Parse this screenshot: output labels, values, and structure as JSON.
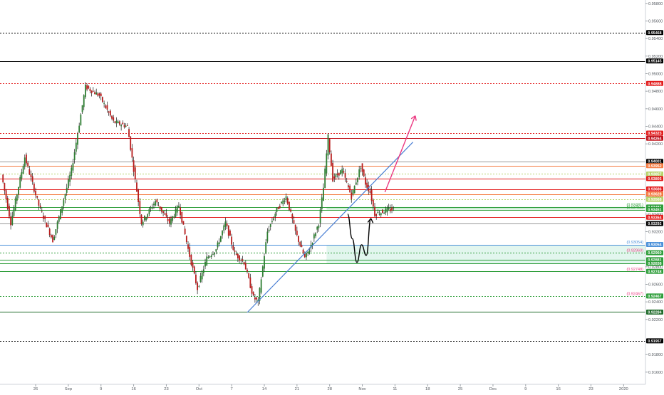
{
  "chart_data": {
    "type": "candlestick",
    "title": "",
    "xlabel": "",
    "ylabel": "",
    "ylim": [
      0.91461,
      0.95839
    ],
    "grid": false,
    "y_ticks": [
      "0.95800",
      "0.95600",
      "0.95400",
      "0.95200",
      "0.95000",
      "0.94800",
      "0.94600",
      "0.94400",
      "0.94200",
      "0.93800",
      "0.93600",
      "0.93400",
      "0.93200",
      "0.92800",
      "0.92600",
      "0.92400",
      "0.92200",
      "0.91800",
      "0.91600",
      "0.91400"
    ],
    "x_ticks": [
      "26",
      "Sep",
      "9",
      "16",
      "23",
      "Oct",
      "7",
      "14",
      "21",
      "28",
      "Nov",
      "11",
      "18",
      "25",
      "Dec",
      "9",
      "16",
      "23",
      "2020"
    ],
    "x_tick_slots": [
      7,
      14,
      21,
      28,
      35,
      42,
      49,
      56,
      63,
      70,
      77,
      84,
      91,
      98,
      105,
      112,
      119,
      126,
      133
    ],
    "candle_count": 84,
    "price_badges": [
      {
        "label": "0.95468",
        "value": 0.95468,
        "color": "#000000"
      },
      {
        "label": "0.95145",
        "value": 0.95145,
        "color": "#000000"
      },
      {
        "label": "0.94888",
        "value": 0.94888,
        "color": "#e31c1c"
      },
      {
        "label": "0.94323",
        "value": 0.94323,
        "color": "#e31c1c"
      },
      {
        "label": "0.94264",
        "value": 0.94264,
        "color": "#c0101a"
      },
      {
        "label": "0.94001",
        "value": 0.94001,
        "color": "#000000"
      },
      {
        "label": "0.93952",
        "value": 0.93952,
        "color": "#f57a40"
      },
      {
        "label": "0.93857",
        "value": 0.93857,
        "color": "#b7d46b"
      },
      {
        "label": "0.93805",
        "value": 0.93805,
        "color": "#e31c1c"
      },
      {
        "label": "0.93686",
        "value": 0.93686,
        "color": "#e31c1c"
      },
      {
        "label": "0.93628",
        "value": 0.93628,
        "color": "#f57a40"
      },
      {
        "label": "0.93568",
        "value": 0.93568,
        "color": "#b7d46b"
      },
      {
        "label": "0.93481",
        "value": 0.93481,
        "color": "#2e9e3a"
      },
      {
        "label": "0.93451",
        "value": 0.93451,
        "color": "#2e9e3a"
      },
      {
        "label": "0.93364",
        "value": 0.93364,
        "color": "#e31c1c"
      },
      {
        "label": "0.93292",
        "value": 0.93292,
        "color": "#000000"
      },
      {
        "label": "0.93054",
        "value": 0.93054,
        "color": "#4a90d9"
      },
      {
        "label": "0.92960",
        "value": 0.9296,
        "color": "#2e9e3a"
      },
      {
        "label": "0.92881",
        "value": 0.92881,
        "color": "#2e9e3a"
      },
      {
        "label": "0.92838",
        "value": 0.92838,
        "color": "#2e9e3a"
      },
      {
        "label": "0.92748",
        "value": 0.92748,
        "color": "#2e9e3a"
      },
      {
        "label": "0.92467",
        "value": 0.92467,
        "color": "#2e9e3a"
      },
      {
        "label": "0.92284",
        "value": 0.92284,
        "color": "#1f6b2a"
      },
      {
        "label": "0.91957",
        "value": 0.91957,
        "color": "#000000"
      }
    ],
    "horizontal_levels": [
      {
        "value": 0.95468,
        "color": "#000000",
        "style": "dotted"
      },
      {
        "value": 0.95145,
        "color": "#000000",
        "style": "solid"
      },
      {
        "value": 0.94888,
        "color": "#e31c1c",
        "style": "dotted"
      },
      {
        "value": 0.94323,
        "color": "#e31c1c",
        "style": "dotted"
      },
      {
        "value": 0.94264,
        "color": "#c0101a",
        "style": "solid"
      },
      {
        "value": 0.94001,
        "color": "#999999",
        "style": "solid"
      },
      {
        "value": 0.93952,
        "color": "#f57a40",
        "style": "solid"
      },
      {
        "value": 0.93857,
        "color": "#b7d46b",
        "style": "dotted"
      },
      {
        "value": 0.93805,
        "color": "#e31c1c",
        "style": "solid"
      },
      {
        "value": 0.93686,
        "color": "#e31c1c",
        "style": "solid"
      },
      {
        "value": 0.93628,
        "color": "#f57a40",
        "style": "solid"
      },
      {
        "value": 0.93568,
        "color": "#b7d46b",
        "style": "dotted"
      },
      {
        "value": 0.93481,
        "color": "#2e9e3a",
        "style": "solid"
      },
      {
        "value": 0.93451,
        "color": "#2e9e3a",
        "style": "solid"
      },
      {
        "value": 0.93364,
        "color": "#e31c1c",
        "style": "solid"
      },
      {
        "value": 0.93292,
        "color": "#999999",
        "style": "solid"
      },
      {
        "value": 0.93054,
        "color": "#4a90d9",
        "style": "solid"
      },
      {
        "value": 0.9296,
        "color": "#2e9e3a",
        "style": "dotted"
      },
      {
        "value": 0.92881,
        "color": "#2e9e3a",
        "style": "solid"
      },
      {
        "value": 0.92838,
        "color": "#2e9e3a",
        "style": "solid"
      },
      {
        "value": 0.92748,
        "color": "#2e9e3a",
        "style": "solid"
      },
      {
        "value": 0.92467,
        "color": "#2e9e3a",
        "style": "dotted"
      },
      {
        "value": 0.92284,
        "color": "#1f6b2a",
        "style": "solid"
      },
      {
        "value": 0.91957,
        "color": "#000000",
        "style": "dotted"
      }
    ],
    "zones": [
      {
        "from": 0.93451,
        "to": 0.93481,
        "color": "#c8ecd1"
      },
      {
        "from": 0.92838,
        "to": 0.9305,
        "color": "#dff5ec"
      }
    ],
    "trendline": {
      "color": "#4a7fd4",
      "from": {
        "slot": 52.5,
        "value": 0.9228
      },
      "to": {
        "slot": 88,
        "value": 0.9422
      }
    },
    "forecast_paths": [
      {
        "color": "#000000",
        "points": [
          [
            74,
            0.934
          ],
          [
            75,
            0.9312
          ],
          [
            76,
            0.9285
          ],
          [
            77,
            0.9305
          ],
          [
            78,
            0.9293
          ],
          [
            79,
            0.9335
          ]
        ]
      },
      {
        "color": "#ec3b83",
        "points": [
          [
            82,
            0.9365
          ],
          [
            88.5,
            0.9452
          ]
        ]
      }
    ],
    "small_level_labels": [
      {
        "text": "(0.93481)",
        "value": 0.93481,
        "color": "#2e9e3a"
      },
      {
        "text": "(0.93451)",
        "value": 0.93451,
        "color": "#2e9e3a"
      },
      {
        "text": "(0.93054)",
        "value": 0.93054,
        "color": "#4a90d9"
      },
      {
        "text": "(0.92960)",
        "value": 0.9296,
        "color": "#ec3b83"
      },
      {
        "text": "(0.92748)",
        "value": 0.92748,
        "color": "#ec3b83"
      },
      {
        "text": "(0.92467)",
        "value": 0.92467,
        "color": "#ec3b83"
      }
    ]
  }
}
